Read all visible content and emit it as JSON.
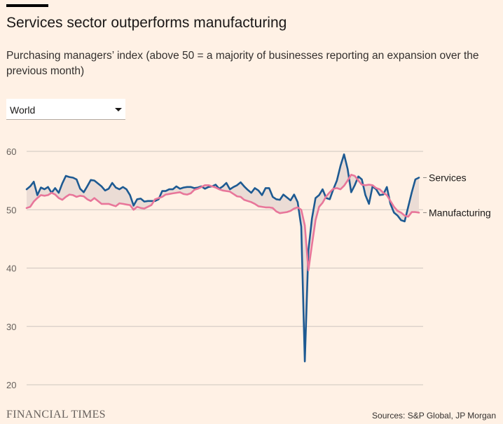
{
  "header": {
    "title": "Services sector outperforms manufacturing",
    "subtitle": "Purchasing managers’ index (above 50 = a majority of businesses reporting an expansion over the previous month)"
  },
  "filter": {
    "selected": "World"
  },
  "footer": {
    "brand": "FINANCIAL TIMES",
    "source": "Sources: S&P Global, JP Morgan"
  },
  "colors": {
    "services": "#1d5a92",
    "manufacturing": "#e8769a",
    "gap_fill": "#ebdcd5",
    "grid": "#cec6bf"
  },
  "chart_data": {
    "type": "line",
    "ylim": [
      20,
      60
    ],
    "yticks": [
      60,
      50,
      40,
      30,
      20
    ],
    "grid": true,
    "legend": "direct labels at line ends",
    "series": [
      {
        "name": "Services",
        "points": [
          [
            0,
            53.5
          ],
          [
            1,
            54
          ],
          [
            2,
            54.8
          ],
          [
            3,
            52.5
          ],
          [
            4,
            53.8
          ],
          [
            5,
            53.5
          ],
          [
            6,
            53.9
          ],
          [
            7,
            52.9
          ],
          [
            8,
            53.7
          ],
          [
            9,
            52.9
          ],
          [
            10,
            54.5
          ],
          [
            11,
            55.8
          ],
          [
            12,
            55.6
          ],
          [
            13,
            55.5
          ],
          [
            14,
            55.2
          ],
          [
            15,
            53.6
          ],
          [
            16,
            53.0
          ],
          [
            17,
            54.0
          ],
          [
            18,
            55.1
          ],
          [
            19,
            55.0
          ],
          [
            20,
            54.5
          ],
          [
            21,
            54.0
          ],
          [
            22,
            53.3
          ],
          [
            23,
            53.6
          ],
          [
            24,
            54.6
          ],
          [
            25,
            53.8
          ],
          [
            26,
            53.5
          ],
          [
            27,
            53.9
          ],
          [
            28,
            53.5
          ],
          [
            29,
            52.5
          ],
          [
            30,
            50.7
          ],
          [
            31,
            51.8
          ],
          [
            32,
            51.9
          ],
          [
            33,
            51.4
          ],
          [
            34,
            51.5
          ],
          [
            35,
            51.5
          ],
          [
            36,
            51.5
          ],
          [
            37,
            51.8
          ],
          [
            38,
            53.2
          ],
          [
            39,
            53.2
          ],
          [
            40,
            53.5
          ],
          [
            41,
            53.5
          ],
          [
            42,
            54.0
          ],
          [
            43,
            53.6
          ],
          [
            44,
            53.8
          ],
          [
            45,
            53.9
          ],
          [
            46,
            53.9
          ],
          [
            47,
            53.7
          ],
          [
            48,
            53.8
          ],
          [
            49,
            54.0
          ],
          [
            50,
            53.6
          ],
          [
            51,
            53.9
          ],
          [
            52,
            54.0
          ],
          [
            53,
            54.3
          ],
          [
            54,
            53.6
          ],
          [
            55,
            54.0
          ],
          [
            56,
            54.6
          ],
          [
            57,
            53.5
          ],
          [
            58,
            53.9
          ],
          [
            59,
            54.2
          ],
          [
            60,
            54.7
          ],
          [
            61,
            54.0
          ],
          [
            62,
            53.4
          ],
          [
            63,
            52.9
          ],
          [
            64,
            53.7
          ],
          [
            65,
            53.3
          ],
          [
            66,
            52.5
          ],
          [
            67,
            53.7
          ],
          [
            68,
            53.7
          ],
          [
            69,
            52.2
          ],
          [
            70,
            51.8
          ],
          [
            71,
            51.7
          ],
          [
            72,
            52.6
          ],
          [
            73,
            52.1
          ],
          [
            74,
            51.6
          ],
          [
            75,
            52.6
          ],
          [
            76,
            51.3
          ],
          [
            77,
            47.1
          ],
          [
            78,
            24.0
          ],
          [
            79,
            43.0
          ],
          [
            80,
            48.5
          ],
          [
            81,
            52.0
          ],
          [
            82,
            52.5
          ],
          [
            83,
            53.5
          ],
          [
            84,
            52.0
          ],
          [
            85,
            51.8
          ],
          [
            86,
            53.5
          ],
          [
            87,
            55.0
          ],
          [
            88,
            57.5
          ],
          [
            89,
            59.5
          ],
          [
            90,
            57.0
          ],
          [
            91,
            53.0
          ],
          [
            92,
            54.2
          ],
          [
            93,
            55.7
          ],
          [
            94,
            55.2
          ],
          [
            95,
            52.5
          ],
          [
            96,
            51.0
          ],
          [
            97,
            54.0
          ],
          [
            98,
            53.5
          ],
          [
            99,
            52.5
          ],
          [
            100,
            52.6
          ],
          [
            101,
            53.9
          ],
          [
            102,
            51.0
          ],
          [
            103,
            49.5
          ],
          [
            104,
            49.0
          ],
          [
            105,
            48.2
          ],
          [
            106,
            48.0
          ],
          [
            107,
            50.5
          ],
          [
            108,
            53.0
          ],
          [
            109,
            55.2
          ],
          [
            110,
            55.5
          ]
        ]
      },
      {
        "name": "Manufacturing",
        "points": [
          [
            0,
            50.3
          ],
          [
            1,
            50.5
          ],
          [
            2,
            51.4
          ],
          [
            3,
            52.0
          ],
          [
            4,
            52.5
          ],
          [
            5,
            52.4
          ],
          [
            6,
            52.5
          ],
          [
            7,
            52.9
          ],
          [
            8,
            52.6
          ],
          [
            9,
            52.0
          ],
          [
            10,
            51.7
          ],
          [
            11,
            52.2
          ],
          [
            12,
            52.6
          ],
          [
            13,
            52.5
          ],
          [
            14,
            52.2
          ],
          [
            15,
            52.4
          ],
          [
            16,
            52.3
          ],
          [
            17,
            51.8
          ],
          [
            18,
            51.5
          ],
          [
            19,
            52.0
          ],
          [
            20,
            51.5
          ],
          [
            21,
            51.0
          ],
          [
            22,
            51.0
          ],
          [
            23,
            51.0
          ],
          [
            24,
            50.8
          ],
          [
            25,
            50.6
          ],
          [
            26,
            51.1
          ],
          [
            27,
            51.0
          ],
          [
            28,
            50.9
          ],
          [
            29,
            50.8
          ],
          [
            30,
            50.0
          ],
          [
            31,
            50.5
          ],
          [
            32,
            50.3
          ],
          [
            33,
            50.2
          ],
          [
            34,
            50.5
          ],
          [
            35,
            50.8
          ],
          [
            36,
            51.8
          ],
          [
            37,
            52.0
          ],
          [
            38,
            52.2
          ],
          [
            39,
            52.6
          ],
          [
            40,
            52.7
          ],
          [
            41,
            52.8
          ],
          [
            42,
            52.9
          ],
          [
            43,
            53.0
          ],
          [
            44,
            52.7
          ],
          [
            45,
            52.6
          ],
          [
            46,
            52.8
          ],
          [
            47,
            53.4
          ],
          [
            48,
            53.6
          ],
          [
            49,
            53.9
          ],
          [
            50,
            54.2
          ],
          [
            51,
            54.2
          ],
          [
            52,
            54.0
          ],
          [
            53,
            53.8
          ],
          [
            54,
            53.5
          ],
          [
            55,
            53.3
          ],
          [
            56,
            53.2
          ],
          [
            57,
            53.1
          ],
          [
            58,
            52.7
          ],
          [
            59,
            52.3
          ],
          [
            60,
            52.2
          ],
          [
            61,
            51.7
          ],
          [
            62,
            51.5
          ],
          [
            63,
            51.3
          ],
          [
            64,
            51.0
          ],
          [
            65,
            50.6
          ],
          [
            66,
            50.5
          ],
          [
            67,
            50.4
          ],
          [
            68,
            50.4
          ],
          [
            69,
            50.3
          ],
          [
            70,
            49.7
          ],
          [
            71,
            49.4
          ],
          [
            72,
            49.5
          ],
          [
            73,
            49.6
          ],
          [
            74,
            49.8
          ],
          [
            75,
            50.2
          ],
          [
            76,
            50.4
          ],
          [
            77,
            50.0
          ],
          [
            78,
            47.3
          ],
          [
            79,
            39.6
          ],
          [
            80,
            44.0
          ],
          [
            81,
            48.2
          ],
          [
            82,
            50.5
          ],
          [
            83,
            51.2
          ],
          [
            84,
            52.3
          ],
          [
            85,
            53.0
          ],
          [
            86,
            53.6
          ],
          [
            87,
            53.7
          ],
          [
            88,
            53.5
          ],
          [
            89,
            54.1
          ],
          [
            90,
            55.0
          ],
          [
            91,
            56.0
          ],
          [
            92,
            55.8
          ],
          [
            93,
            55.0
          ],
          [
            94,
            54.3
          ],
          [
            95,
            54.2
          ],
          [
            96,
            54.3
          ],
          [
            97,
            54.2
          ],
          [
            98,
            53.7
          ],
          [
            99,
            53.5
          ],
          [
            100,
            52.9
          ],
          [
            101,
            52.5
          ],
          [
            102,
            51.5
          ],
          [
            103,
            50.5
          ],
          [
            104,
            49.8
          ],
          [
            105,
            49.5
          ],
          [
            106,
            49.0
          ],
          [
            107,
            48.8
          ],
          [
            108,
            49.6
          ],
          [
            109,
            49.6
          ],
          [
            110,
            49.5
          ]
        ]
      }
    ]
  }
}
